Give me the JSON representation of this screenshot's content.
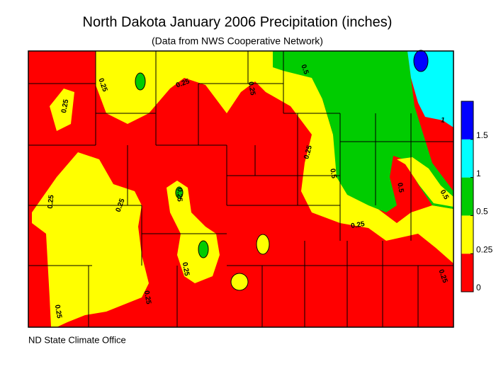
{
  "header": {
    "title": "North Dakota January 2006 Precipitation (inches)",
    "subtitle": "(Data from NWS Cooperative Network)"
  },
  "legend": {
    "levels": [
      0,
      0.25,
      0.5,
      1,
      1.5
    ],
    "colors": [
      "#ff0000",
      "#ffff00",
      "#00cc00",
      "#00ffff",
      "#0000ff"
    ]
  },
  "contour_labels": [
    "0.25",
    "0.25",
    "0.25",
    "0.5",
    "0.25",
    "0.25",
    "1",
    "0.5",
    "0.5",
    "0.5",
    "0.25",
    "0.25",
    "0.25",
    "0.25",
    "0.25",
    "0.25",
    "0.25",
    "0.25"
  ],
  "credit": "ND State Climate Office"
}
